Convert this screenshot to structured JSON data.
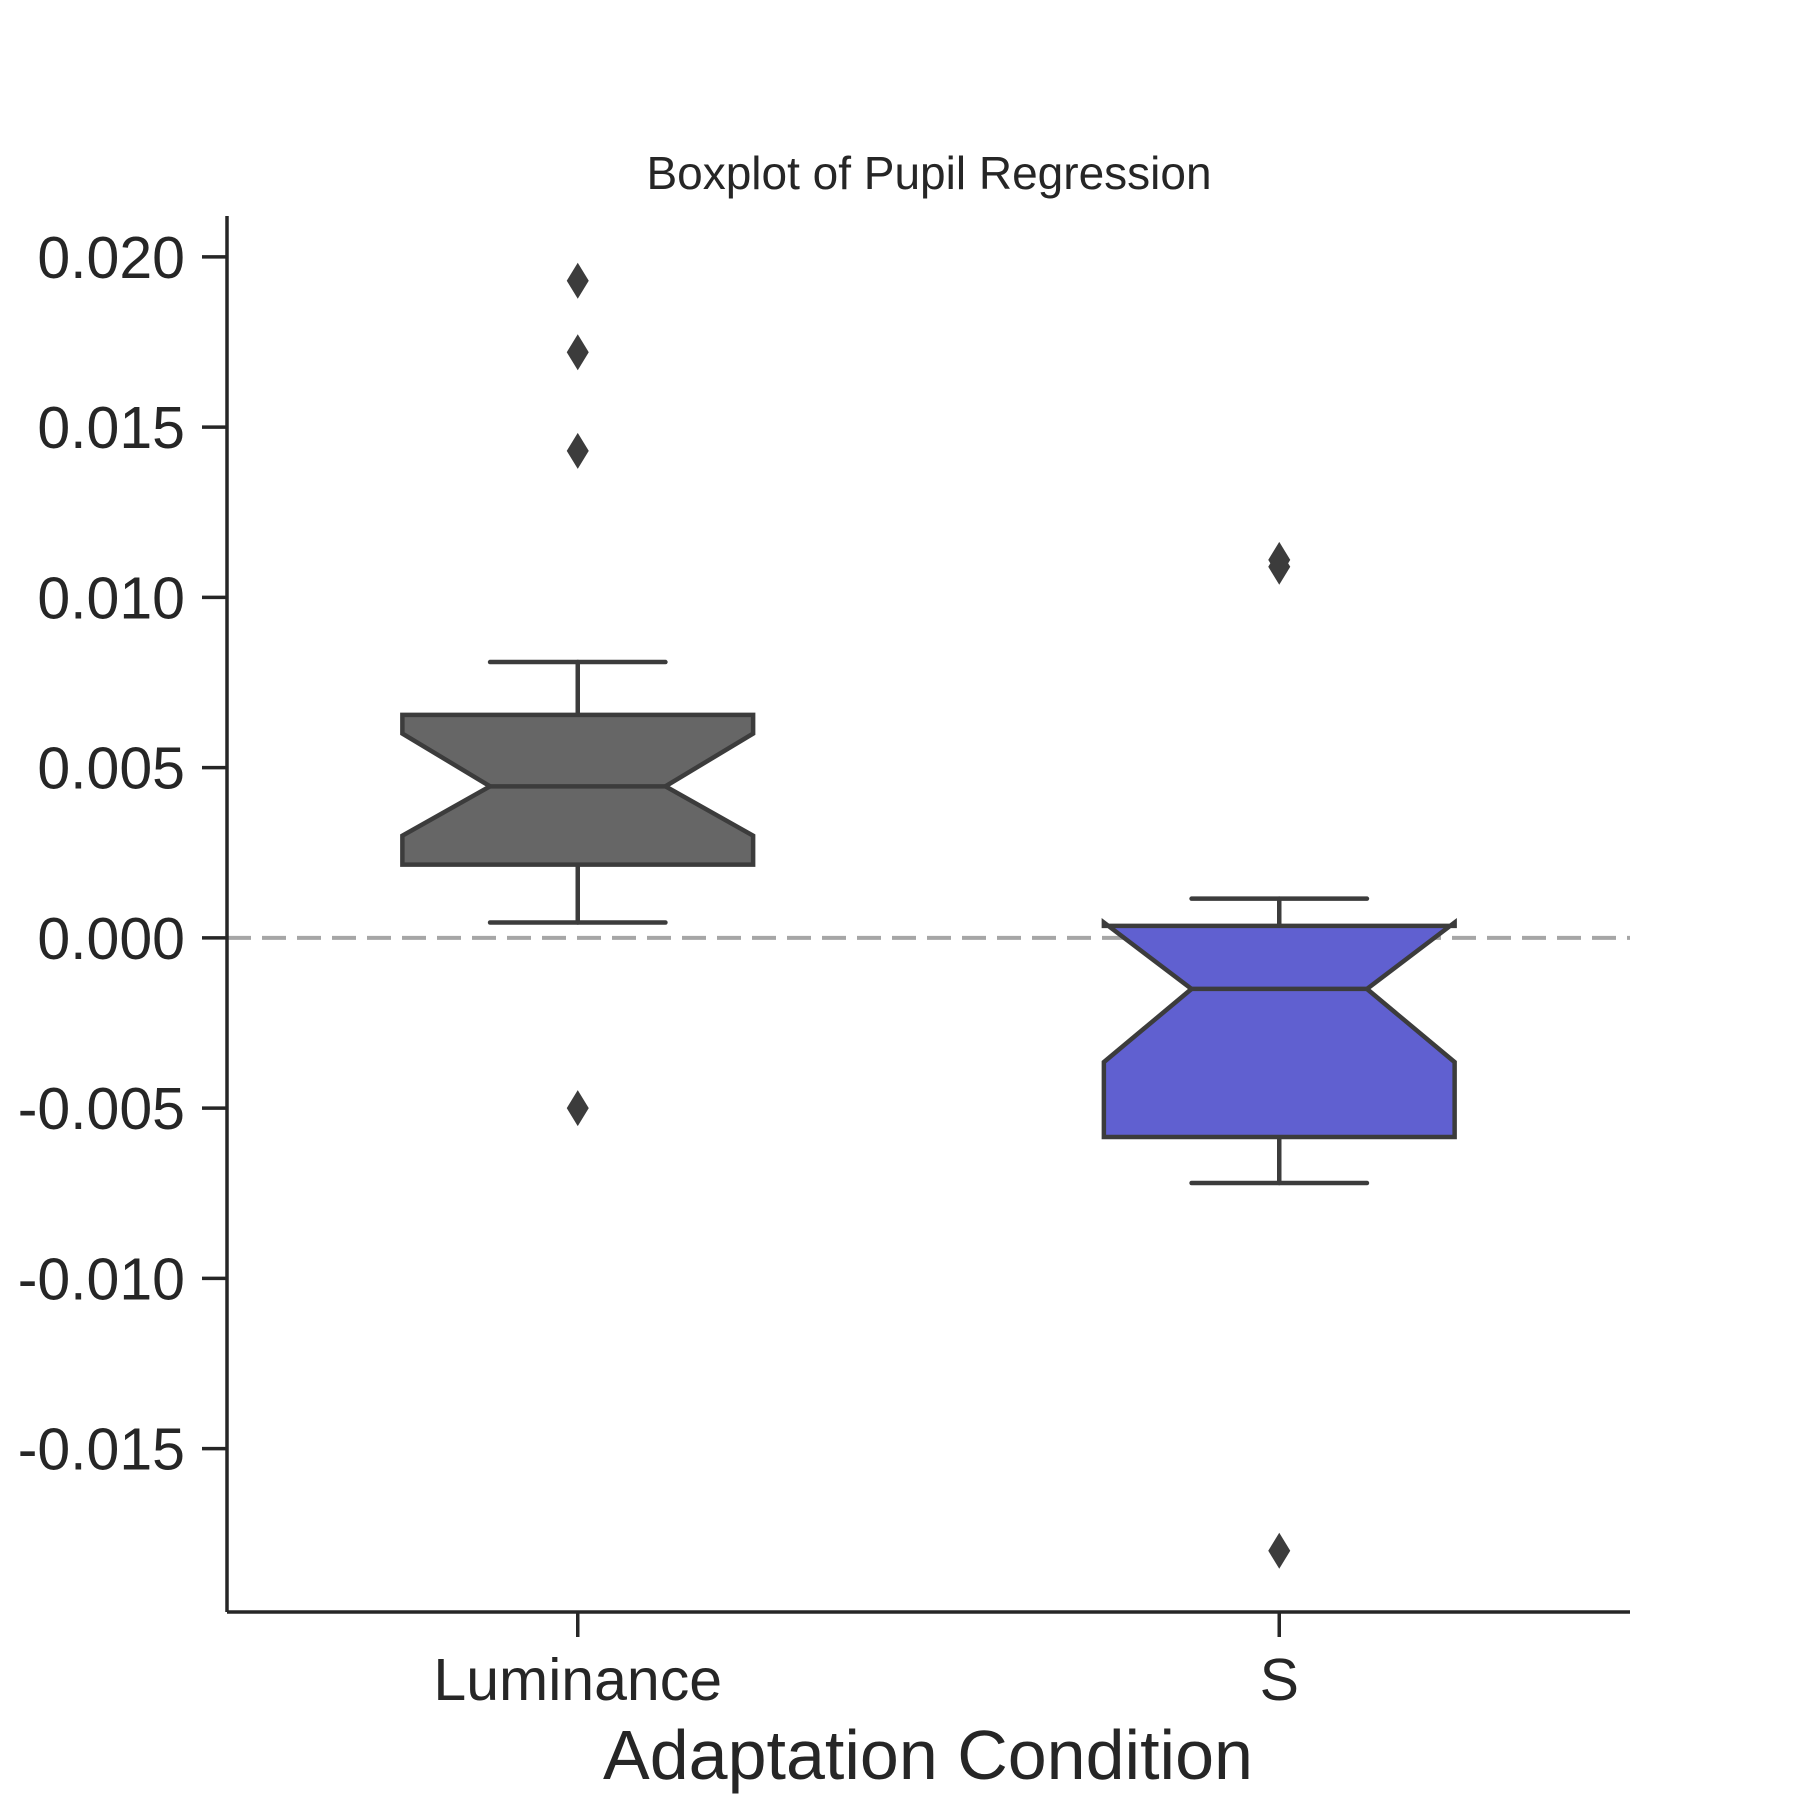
{
  "chart_data": {
    "type": "box",
    "title": "Boxplot of Pupil Regression",
    "xlabel": "Adaptation Condition",
    "ylabel": "",
    "ylim": [
      -0.0198,
      0.0212
    ],
    "yticks": [
      0.02,
      0.015,
      0.01,
      0.005,
      0.0,
      -0.005,
      -0.01,
      -0.015
    ],
    "ytick_labels": [
      "0.020",
      "0.015",
      "0.010",
      "0.005",
      "0.000",
      "-0.005",
      "-0.010",
      "-0.015"
    ],
    "categories": [
      "Luminance",
      "S"
    ],
    "notched": true,
    "grid": false,
    "reference_line": {
      "y": 0.0,
      "style": "dashed",
      "color": "#a6a6a6"
    },
    "boxes": [
      {
        "category": "Luminance",
        "color": "#666666",
        "whisker_low": 0.00045,
        "q1": 0.00215,
        "notch_low": 0.003,
        "median": 0.00445,
        "notch_high": 0.006,
        "q3": 0.00655,
        "whisker_high": 0.0081,
        "fliers": [
          0.0193,
          0.0172,
          0.0143,
          -0.005
        ]
      },
      {
        "category": "S",
        "color": "#6060d0",
        "whisker_low": -0.0072,
        "q1": -0.00585,
        "notch_low": -0.00365,
        "median": -0.0015,
        "notch_high": 0.00045,
        "q3": 0.00035,
        "whisker_high": 0.00115,
        "fliers": [
          0.0111,
          0.0109,
          -0.018
        ]
      }
    ]
  }
}
